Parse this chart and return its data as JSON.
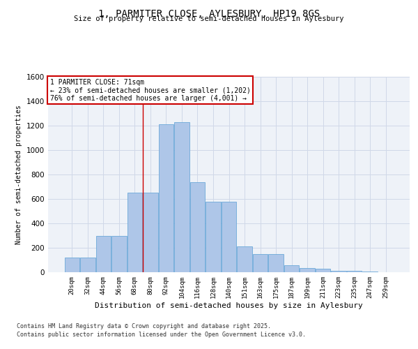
{
  "title_line1": "1, PARMITER CLOSE, AYLESBURY, HP19 8GS",
  "title_line2": "Size of property relative to semi-detached houses in Aylesbury",
  "xlabel": "Distribution of semi-detached houses by size in Aylesbury",
  "ylabel": "Number of semi-detached properties",
  "bin_labels": [
    "20sqm",
    "32sqm",
    "44sqm",
    "56sqm",
    "68sqm",
    "80sqm",
    "92sqm",
    "104sqm",
    "116sqm",
    "128sqm",
    "140sqm",
    "151sqm",
    "163sqm",
    "175sqm",
    "187sqm",
    "199sqm",
    "211sqm",
    "223sqm",
    "235sqm",
    "247sqm",
    "259sqm"
  ],
  "bar_values": [
    120,
    120,
    300,
    300,
    650,
    650,
    1210,
    1230,
    740,
    580,
    580,
    210,
    150,
    150,
    60,
    35,
    30,
    10,
    10,
    5,
    2
  ],
  "bar_color": "#aec6e8",
  "bar_edge_color": "#5a9fd4",
  "grid_color": "#d0d8e8",
  "background_color": "#eef2f8",
  "property_line_x": 4.5,
  "property_size": "71sqm",
  "annotation_text_line1": "1 PARMITER CLOSE: 71sqm",
  "annotation_text_line2": "← 23% of semi-detached houses are smaller (1,202)",
  "annotation_text_line3": "76% of semi-detached houses are larger (4,001) →",
  "annotation_box_color": "#ffffff",
  "annotation_box_edge": "#cc0000",
  "property_line_color": "#cc0000",
  "ylim": [
    0,
    1600
  ],
  "yticks": [
    0,
    200,
    400,
    600,
    800,
    1000,
    1200,
    1400,
    1600
  ],
  "footnote_line1": "Contains HM Land Registry data © Crown copyright and database right 2025.",
  "footnote_line2": "Contains public sector information licensed under the Open Government Licence v3.0."
}
